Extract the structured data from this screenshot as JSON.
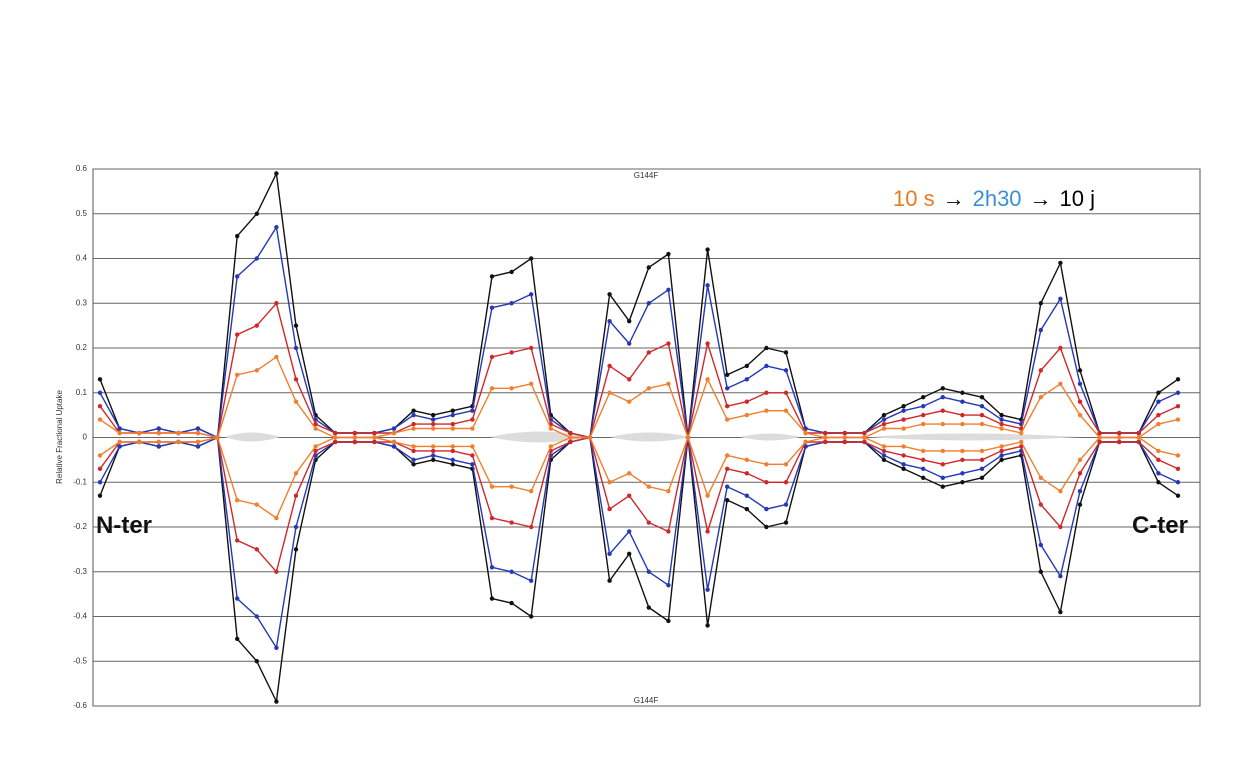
{
  "chart_data": {
    "type": "line",
    "title": "G144F",
    "footer": "G144F",
    "y_label": "Relative Fractional Uptake",
    "annotations": [
      "N-ter",
      "C-ter"
    ],
    "legend_text": [
      {
        "text": "10 s",
        "color": "#e87a22"
      },
      {
        "text": "→",
        "color": "#000000"
      },
      {
        "text": "2h30",
        "color": "#3b8fd6"
      },
      {
        "text": "→",
        "color": "#000000"
      },
      {
        "text": "10 j",
        "color": "#000000"
      }
    ],
    "ylim": [
      -0.6,
      0.6
    ],
    "yticks": [
      0.6,
      0.5,
      0.4,
      0.3,
      0.2,
      0.1,
      0,
      -0.1,
      -0.2,
      -0.3,
      -0.4,
      -0.5,
      -0.6
    ],
    "grid": true,
    "series": [
      {
        "color": "#111111",
        "values": [
          0.13,
          0.02,
          0.01,
          0.02,
          0.01,
          0.02,
          0,
          0.45,
          0.5,
          0.59,
          0.25,
          0.05,
          0.01,
          0.01,
          0.01,
          0.02,
          0.06,
          0.05,
          0.06,
          0.07,
          0.36,
          0.37,
          0.4,
          0.05,
          0.01,
          0,
          0.32,
          0.26,
          0.38,
          0.41,
          0,
          0.42,
          0.14,
          0.16,
          0.2,
          0.19,
          0.02,
          0.01,
          0.01,
          0.01,
          0.05,
          0.07,
          0.09,
          0.11,
          0.1,
          0.09,
          0.05,
          0.04,
          0.3,
          0.39,
          0.15,
          0.01,
          0.01,
          0.01,
          0.1,
          0.13
        ]
      },
      {
        "color": "#111111",
        "values": [
          -0.13,
          -0.02,
          -0.01,
          -0.02,
          -0.01,
          -0.02,
          0,
          -0.45,
          -0.5,
          -0.59,
          -0.25,
          -0.05,
          -0.01,
          -0.01,
          -0.01,
          -0.02,
          -0.06,
          -0.05,
          -0.06,
          -0.07,
          -0.36,
          -0.37,
          -0.4,
          -0.05,
          -0.01,
          0,
          -0.32,
          -0.26,
          -0.38,
          -0.41,
          0,
          -0.42,
          -0.14,
          -0.16,
          -0.2,
          -0.19,
          -0.02,
          -0.01,
          -0.01,
          -0.01,
          -0.05,
          -0.07,
          -0.09,
          -0.11,
          -0.1,
          -0.09,
          -0.05,
          -0.04,
          -0.3,
          -0.39,
          -0.15,
          -0.01,
          -0.01,
          -0.01,
          -0.1,
          -0.13
        ]
      },
      {
        "color": "#2438b8",
        "values": [
          0.1,
          0.02,
          0.01,
          0.02,
          0.01,
          0.02,
          0,
          0.36,
          0.4,
          0.47,
          0.2,
          0.04,
          0.01,
          0.01,
          0.01,
          0.02,
          0.05,
          0.04,
          0.05,
          0.06,
          0.29,
          0.3,
          0.32,
          0.04,
          0.01,
          0,
          0.26,
          0.21,
          0.3,
          0.33,
          0,
          0.34,
          0.11,
          0.13,
          0.16,
          0.15,
          0.02,
          0.01,
          0.01,
          0.01,
          0.04,
          0.06,
          0.07,
          0.09,
          0.08,
          0.07,
          0.04,
          0.03,
          0.24,
          0.31,
          0.12,
          0.01,
          0.01,
          0.01,
          0.08,
          0.1
        ]
      },
      {
        "color": "#2438b8",
        "values": [
          -0.1,
          -0.02,
          -0.01,
          -0.02,
          -0.01,
          -0.02,
          0,
          -0.36,
          -0.4,
          -0.47,
          -0.2,
          -0.04,
          -0.01,
          -0.01,
          -0.01,
          -0.02,
          -0.05,
          -0.04,
          -0.05,
          -0.06,
          -0.29,
          -0.3,
          -0.32,
          -0.04,
          -0.01,
          0,
          -0.26,
          -0.21,
          -0.3,
          -0.33,
          0,
          -0.34,
          -0.11,
          -0.13,
          -0.16,
          -0.15,
          -0.02,
          -0.01,
          -0.01,
          -0.01,
          -0.04,
          -0.06,
          -0.07,
          -0.09,
          -0.08,
          -0.07,
          -0.04,
          -0.03,
          -0.24,
          -0.31,
          -0.12,
          -0.01,
          -0.01,
          -0.01,
          -0.08,
          -0.1
        ]
      },
      {
        "color": "#d0282a",
        "values": [
          0.07,
          0.01,
          0.01,
          0.01,
          0.01,
          0.01,
          0,
          0.23,
          0.25,
          0.3,
          0.13,
          0.03,
          0.01,
          0.01,
          0.01,
          0.01,
          0.03,
          0.03,
          0.03,
          0.04,
          0.18,
          0.19,
          0.2,
          0.03,
          0.01,
          0,
          0.16,
          0.13,
          0.19,
          0.21,
          0,
          0.21,
          0.07,
          0.08,
          0.1,
          0.1,
          0.01,
          0.01,
          0.01,
          0.01,
          0.03,
          0.04,
          0.05,
          0.06,
          0.05,
          0.05,
          0.03,
          0.02,
          0.15,
          0.2,
          0.08,
          0.01,
          0.01,
          0.01,
          0.05,
          0.07
        ]
      },
      {
        "color": "#d0282a",
        "values": [
          -0.07,
          -0.01,
          -0.01,
          -0.01,
          -0.01,
          -0.01,
          0,
          -0.23,
          -0.25,
          -0.3,
          -0.13,
          -0.03,
          -0.01,
          -0.01,
          -0.01,
          -0.01,
          -0.03,
          -0.03,
          -0.03,
          -0.04,
          -0.18,
          -0.19,
          -0.2,
          -0.03,
          -0.01,
          0,
          -0.16,
          -0.13,
          -0.19,
          -0.21,
          0,
          -0.21,
          -0.07,
          -0.08,
          -0.1,
          -0.1,
          -0.01,
          -0.01,
          -0.01,
          -0.01,
          -0.03,
          -0.04,
          -0.05,
          -0.06,
          -0.05,
          -0.05,
          -0.03,
          -0.02,
          -0.15,
          -0.2,
          -0.08,
          -0.01,
          -0.01,
          -0.01,
          -0.05,
          -0.07
        ]
      },
      {
        "color": "#f07f2e",
        "values": [
          0.04,
          0.01,
          0.01,
          0.01,
          0.01,
          0.01,
          0,
          0.14,
          0.15,
          0.18,
          0.08,
          0.02,
          0,
          0,
          0,
          0.01,
          0.02,
          0.02,
          0.02,
          0.02,
          0.11,
          0.11,
          0.12,
          0.02,
          0,
          0,
          0.1,
          0.08,
          0.11,
          0.12,
          0,
          0.13,
          0.04,
          0.05,
          0.06,
          0.06,
          0.01,
          0,
          0,
          0,
          0.02,
          0.02,
          0.03,
          0.03,
          0.03,
          0.03,
          0.02,
          0.01,
          0.09,
          0.12,
          0.05,
          0,
          0,
          0,
          0.03,
          0.04
        ]
      },
      {
        "color": "#f07f2e",
        "values": [
          -0.04,
          -0.01,
          -0.01,
          -0.01,
          -0.01,
          -0.01,
          0,
          -0.14,
          -0.15,
          -0.18,
          -0.08,
          -0.02,
          0,
          0,
          0,
          -0.01,
          -0.02,
          -0.02,
          -0.02,
          -0.02,
          -0.11,
          -0.11,
          -0.12,
          -0.02,
          0,
          0,
          -0.1,
          -0.08,
          -0.11,
          -0.12,
          0,
          -0.13,
          -0.04,
          -0.05,
          -0.06,
          -0.06,
          -0.01,
          0,
          0,
          0,
          -0.02,
          -0.02,
          -0.03,
          -0.03,
          -0.03,
          -0.03,
          -0.02,
          -0.01,
          -0.09,
          -0.12,
          -0.05,
          0,
          0,
          0,
          -0.03,
          -0.04
        ]
      }
    ]
  }
}
